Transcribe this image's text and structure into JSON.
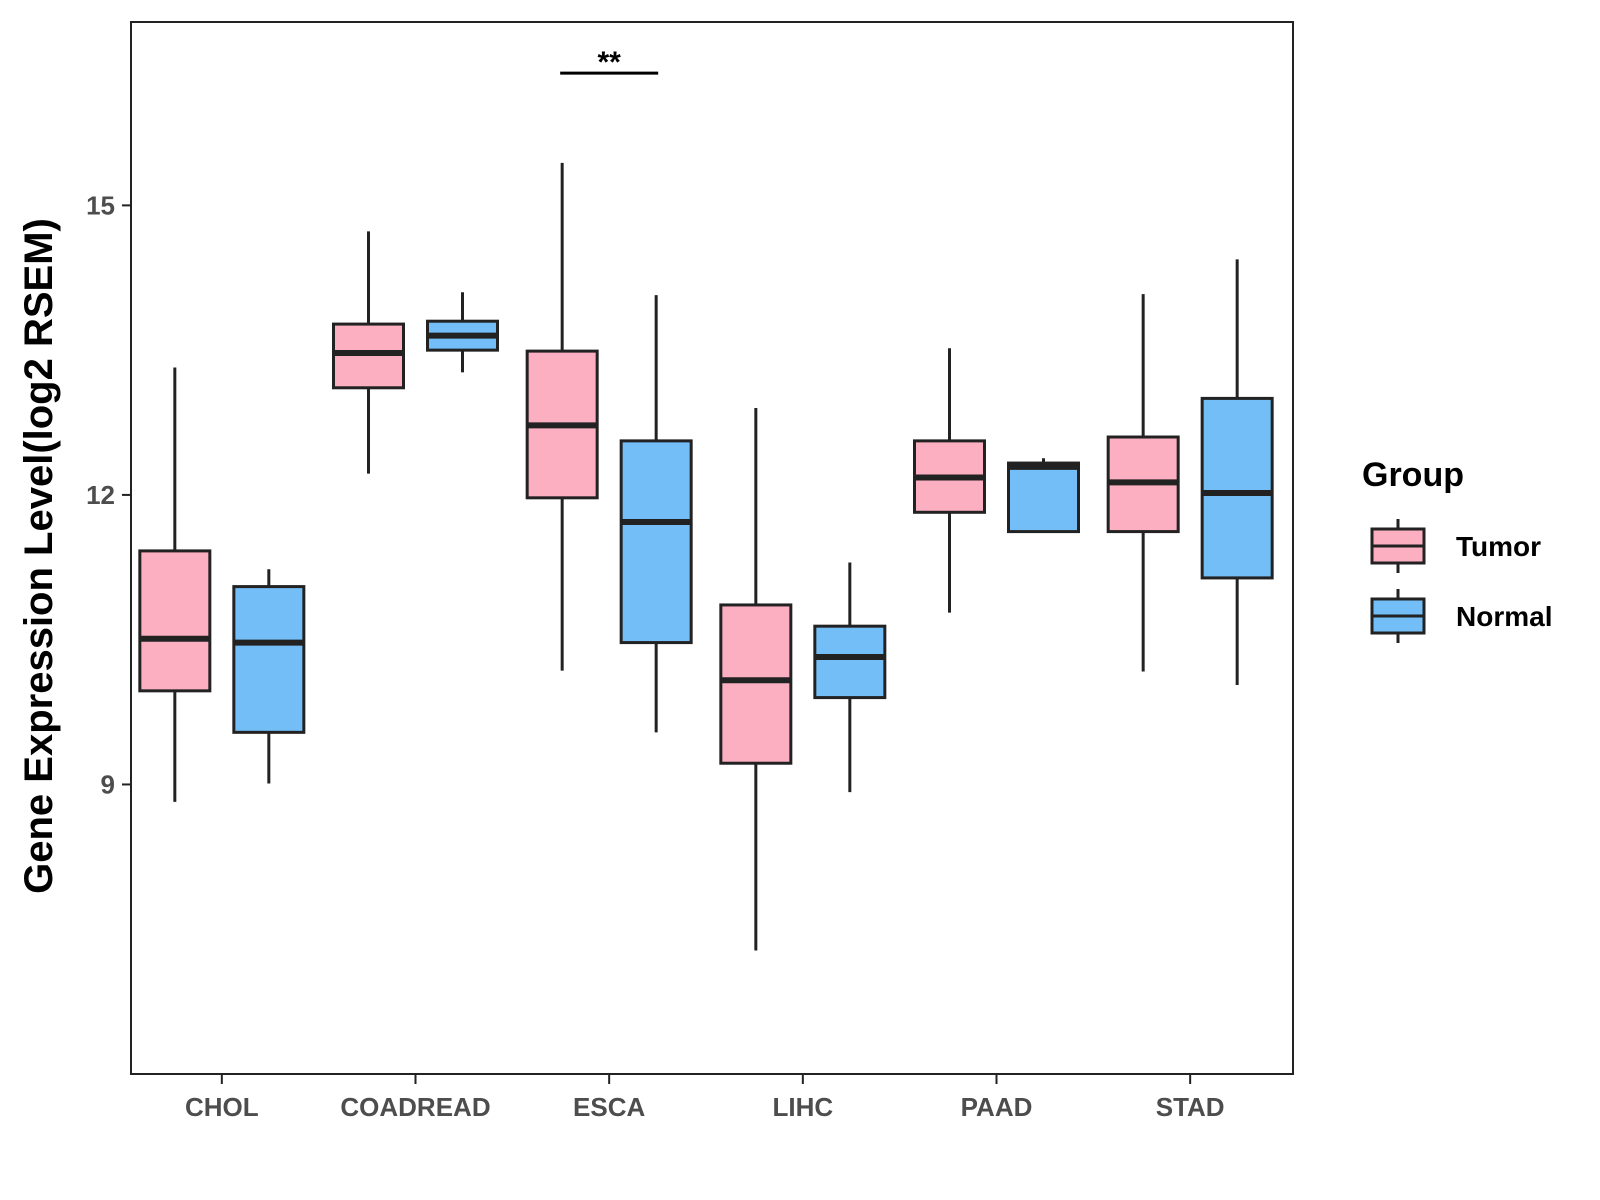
{
  "chart_data": {
    "type": "boxplot",
    "title": "",
    "xlabel": "",
    "ylabel": "Gene Expression Level(log2 RSEM)",
    "ylim": [
      6.0,
      16.9
    ],
    "yticks": [
      9,
      12,
      15
    ],
    "categories": [
      "CHOL",
      "COADREAD",
      "ESCA",
      "LIHC",
      "PAAD",
      "STAD"
    ],
    "legend": {
      "title": "Group",
      "position": "right",
      "items": [
        {
          "name": "Tumor",
          "color": "#FBAFC1"
        },
        {
          "name": "Normal",
          "color": "#74BEF7"
        }
      ]
    },
    "series": [
      {
        "name": "Tumor",
        "color": "#FBAFC1",
        "boxes": [
          {
            "min": 8.82,
            "q1": 9.97,
            "median": 10.51,
            "q3": 11.42,
            "max": 13.32
          },
          {
            "min": 12.22,
            "q1": 13.11,
            "median": 13.47,
            "q3": 13.77,
            "max": 14.73
          },
          {
            "min": 10.18,
            "q1": 11.97,
            "median": 12.72,
            "q3": 13.49,
            "max": 15.44
          },
          {
            "min": 7.28,
            "q1": 9.22,
            "median": 10.08,
            "q3": 10.86,
            "max": 12.9
          },
          {
            "min": 10.78,
            "q1": 11.82,
            "median": 12.18,
            "q3": 12.56,
            "max": 13.52
          },
          {
            "min": 10.17,
            "q1": 11.62,
            "median": 12.13,
            "q3": 12.6,
            "max": 14.08
          }
        ]
      },
      {
        "name": "Normal",
        "color": "#74BEF7",
        "boxes": [
          {
            "min": 9.01,
            "q1": 9.54,
            "median": 10.47,
            "q3": 11.05,
            "max": 11.23
          },
          {
            "min": 13.27,
            "q1": 13.5,
            "median": 13.65,
            "q3": 13.8,
            "max": 14.1
          },
          {
            "min": 9.54,
            "q1": 10.47,
            "median": 11.72,
            "q3": 12.56,
            "max": 14.07
          },
          {
            "min": 8.92,
            "q1": 9.9,
            "median": 10.32,
            "q3": 10.64,
            "max": 11.3
          },
          {
            "min": 11.62,
            "q1": 11.62,
            "median": 12.29,
            "q3": 12.33,
            "max": 12.38
          },
          {
            "min": 10.03,
            "q1": 11.14,
            "median": 12.02,
            "q3": 13.0,
            "max": 14.44
          }
        ]
      }
    ],
    "annotations": [
      {
        "category": "ESCA",
        "label": "**",
        "y": 16.37
      }
    ]
  }
}
